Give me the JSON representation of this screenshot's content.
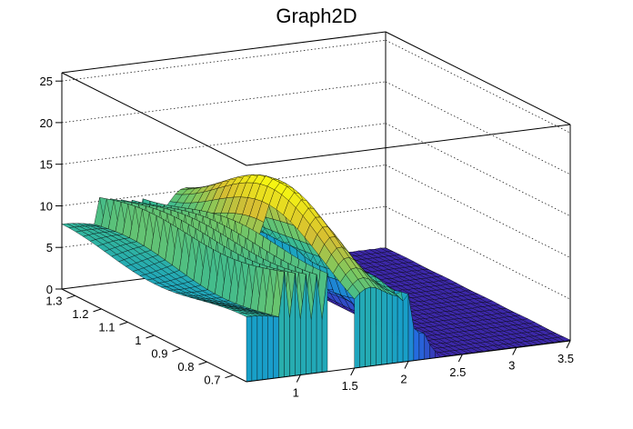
{
  "chart_data": {
    "type": "surface",
    "title": "Graph2D",
    "colormap": "viridis-like (dark blue → teal → green → yellow)",
    "grid": true,
    "x_axis": {
      "range": [
        0.5,
        3.5
      ],
      "ticks": [
        "1",
        "1.5",
        "2",
        "2.5",
        "3",
        "3.5"
      ]
    },
    "y_axis": {
      "range": [
        0.65,
        1.35
      ],
      "ticks": [
        "0.7",
        "0.8",
        "0.9",
        "1",
        "1.1",
        "1.2",
        "1.3"
      ]
    },
    "z_axis": {
      "range": [
        0,
        26
      ],
      "ticks": [
        "0",
        "5",
        "10",
        "15",
        "20",
        "25"
      ]
    },
    "surface": {
      "z_min": 0,
      "z_max": 17,
      "high_region": {
        "x_range": [
          0.6,
          1.9
        ],
        "z_approx": 7
      },
      "oscillation_peak_x": [
        0.85,
        0.95,
        1.05,
        1.15,
        1.25
      ],
      "central_peak": {
        "x": 1.62,
        "y": 1.02,
        "z": 17
      },
      "flat_region": {
        "x_range": [
          2.3,
          3.5
        ],
        "z_approx": 0
      },
      "gap": {
        "x_range": [
          1.28,
          1.46
        ],
        "y_range": [
          0.65,
          0.95
        ]
      }
    }
  }
}
